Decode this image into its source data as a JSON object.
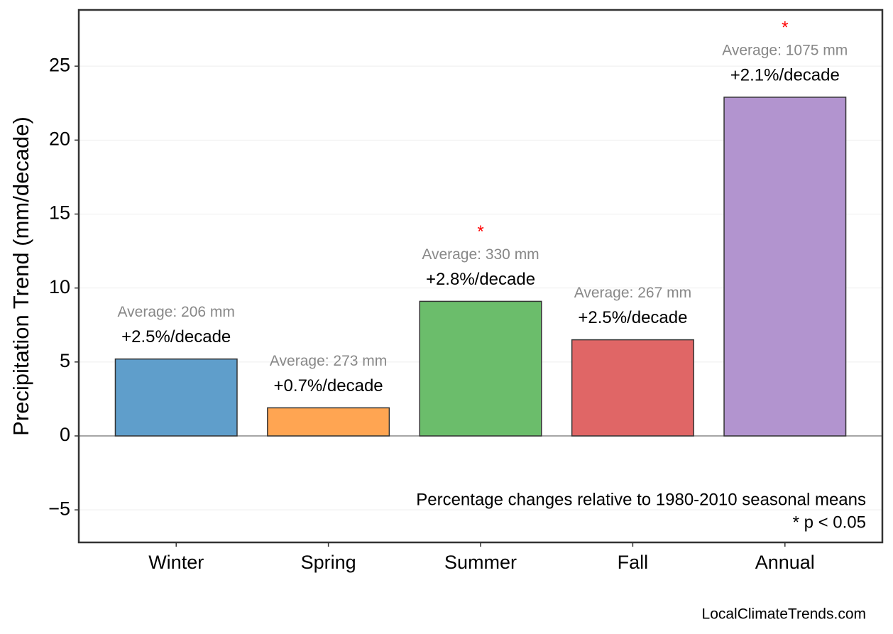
{
  "chart_data": {
    "type": "bar",
    "y_label": "Precipitation Trend (mm/decade)",
    "categories": [
      "Winter",
      "Spring",
      "Summer",
      "Fall",
      "Annual"
    ],
    "values": [
      5.2,
      1.9,
      9.1,
      6.5,
      22.9
    ],
    "colors": [
      "#5f9ecb",
      "#ffa552",
      "#6bbd6b",
      "#e06666",
      "#b294cf"
    ],
    "percent_labels": [
      "+2.5%/decade",
      "+0.7%/decade",
      "+2.8%/decade",
      "+2.5%/decade",
      "+2.1%/decade"
    ],
    "average_labels": [
      "Average: 206 mm",
      "Average: 273 mm",
      "Average: 330 mm",
      "Average: 267 mm",
      "Average: 1075 mm"
    ],
    "significant": [
      false,
      false,
      true,
      false,
      true
    ],
    "significance_marker": "*",
    "ylim": [
      -7.2,
      28.8
    ],
    "yticks": [
      {
        "value": -5,
        "label": "−5"
      },
      0,
      5,
      10,
      15,
      20,
      25
    ],
    "grid": true,
    "annotations": [
      "Percentage changes relative to 1980-2010 seasonal means",
      "* p < 0.05"
    ],
    "source": "LocalClimateTrends.com"
  }
}
